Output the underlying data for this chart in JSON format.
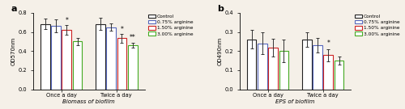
{
  "panel_a": {
    "title": "a",
    "xlabel": "Biomass of biofilm",
    "ylabel": "OD570nm",
    "ylim": [
      0.0,
      0.8
    ],
    "yticks": [
      0.0,
      0.2,
      0.4,
      0.6,
      0.8
    ],
    "groups": [
      "Once a day",
      "Twice a day"
    ],
    "bars": [
      {
        "label": "Control",
        "facecolor": "#ffffff",
        "edgecolor": "#222222",
        "values": [
          0.685,
          0.685
        ],
        "errors": [
          0.055,
          0.06
        ]
      },
      {
        "label": "0.75% arginine",
        "facecolor": "#ffffff",
        "edgecolor": "#5566bb",
        "values": [
          0.665,
          0.648
        ],
        "errors": [
          0.065,
          0.038
        ]
      },
      {
        "label": "1.50% arginine",
        "facecolor": "#ffffff",
        "edgecolor": "#cc2222",
        "values": [
          0.62,
          0.535
        ],
        "errors": [
          0.05,
          0.045
        ]
      },
      {
        "label": "3.00% arginine",
        "facecolor": "#ffffff",
        "edgecolor": "#44aa22",
        "values": [
          0.5,
          0.46
        ],
        "errors": [
          0.038,
          0.028
        ]
      }
    ],
    "significance": [
      {
        "group": 0,
        "bar": 2,
        "text": "*"
      },
      {
        "group": 1,
        "bar": 2,
        "text": "*"
      },
      {
        "group": 1,
        "bar": 3,
        "text": "**"
      }
    ]
  },
  "panel_b": {
    "title": "b",
    "xlabel": "EPS of biofilm",
    "ylabel": "OD490nm",
    "ylim": [
      0.0,
      0.4
    ],
    "yticks": [
      0.0,
      0.1,
      0.2,
      0.3,
      0.4
    ],
    "groups": [
      "Once a day",
      "Twice a day"
    ],
    "bars": [
      {
        "label": "Control",
        "facecolor": "#ffffff",
        "edgecolor": "#222222",
        "values": [
          0.262,
          0.262
        ],
        "errors": [
          0.05,
          0.038
        ]
      },
      {
        "label": "0.75% arginine",
        "facecolor": "#ffffff",
        "edgecolor": "#5566bb",
        "values": [
          0.24,
          0.232
        ],
        "errors": [
          0.058,
          0.038
        ]
      },
      {
        "label": "1.50% arginine",
        "facecolor": "#ffffff",
        "edgecolor": "#cc2222",
        "values": [
          0.218,
          0.178
        ],
        "errors": [
          0.048,
          0.03
        ]
      },
      {
        "label": "3.00% arginine",
        "facecolor": "#ffffff",
        "edgecolor": "#44aa22",
        "values": [
          0.2,
          0.15
        ],
        "errors": [
          0.06,
          0.022
        ]
      }
    ],
    "significance": [
      {
        "group": 1,
        "bar": 2,
        "text": "*"
      }
    ]
  },
  "legend_labels": [
    "Control",
    "0.75% arginine",
    "1.50% arginine",
    "3.00% arginine"
  ],
  "legend_facecolors": [
    "#ffffff",
    "#ffffff",
    "#ffffff",
    "#ffffff"
  ],
  "legend_edgecolors": [
    "#222222",
    "#5566bb",
    "#cc2222",
    "#44aa22"
  ],
  "bg_color": "#f5f0e8"
}
